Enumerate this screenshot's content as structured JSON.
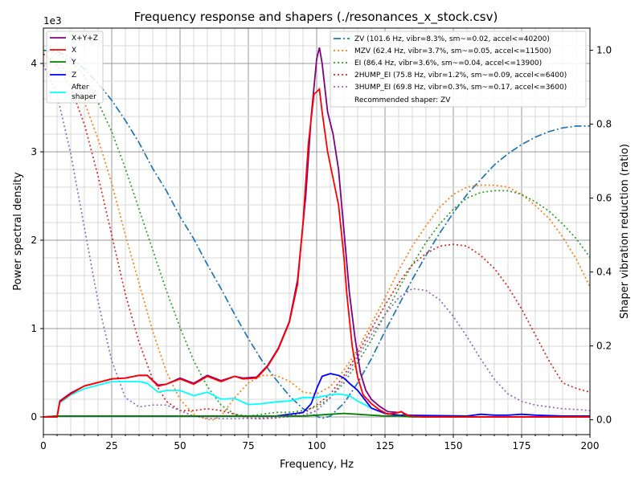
{
  "chart_data": {
    "type": "line",
    "title": "Frequency response and shapers (./resonances_x_stock.csv)",
    "xlabel": "Frequency, Hz",
    "ylabel": "Power spectral density",
    "y2label": "Shaper vibration reduction (ratio)",
    "offset_text": "1e3",
    "xlim": [
      0,
      200
    ],
    "ylim": [
      -0.2,
      4.4
    ],
    "y2lim": [
      -0.04,
      1.06
    ],
    "xticks": [
      "0",
      "25",
      "50",
      "75",
      "100",
      "125",
      "150",
      "175",
      "200"
    ],
    "yticks": [
      "0",
      "1",
      "2",
      "3",
      "4"
    ],
    "y2ticks": [
      "0.0",
      "0.2",
      "0.4",
      "0.6",
      "0.8",
      "1.0"
    ],
    "grid": true,
    "legend_left": {
      "placement": "top-left",
      "entries": [
        "X+Y+Z",
        "X",
        "Y",
        "Z",
        "After\nshaper"
      ]
    },
    "legend_right": {
      "placement": "top-right",
      "entries": [
        "ZV (101.6 Hz, vibr=8.3%, sm~=0.02, accel<=40200)",
        "MZV (62.4 Hz, vibr=3.7%, sm~=0.05, accel<=11500)",
        "EI (86.4 Hz, vibr=3.6%, sm~=0.04, accel<=13900)",
        "2HUMP_EI (75.8 Hz, vibr=1.2%, sm~=0.09, accel<=6400)",
        "3HUMP_EI (69.8 Hz, vibr=0.3%, sm~=0.17, accel<=3600)"
      ],
      "recommended": "Recommended shaper: ZV"
    },
    "psd_series": [
      {
        "name": "X+Y+Z",
        "color": "#800080",
        "x": [
          0,
          5,
          6,
          10,
          15,
          20,
          25,
          30,
          35,
          38,
          42,
          45,
          50,
          55,
          60,
          65,
          70,
          73,
          78,
          82,
          86,
          90,
          93,
          96,
          98,
          100,
          101,
          102,
          104,
          106,
          108,
          110,
          112,
          114,
          116,
          118,
          120,
          123,
          126,
          130,
          131,
          132,
          134,
          140,
          160,
          200
        ],
        "y": [
          0,
          0,
          0.18,
          0.27,
          0.35,
          0.39,
          0.43,
          0.44,
          0.47,
          0.47,
          0.36,
          0.37,
          0.44,
          0.38,
          0.47,
          0.41,
          0.46,
          0.44,
          0.45,
          0.58,
          0.78,
          1.08,
          1.55,
          2.5,
          3.4,
          4.05,
          4.18,
          4.0,
          3.45,
          3.2,
          2.8,
          2.1,
          1.4,
          0.9,
          0.5,
          0.3,
          0.2,
          0.12,
          0.06,
          0.05,
          0.06,
          0.04,
          0.01,
          0,
          0,
          0
        ]
      },
      {
        "name": "X",
        "color": "#ff0000",
        "x": [
          0,
          5,
          6,
          10,
          15,
          20,
          25,
          30,
          35,
          38,
          42,
          45,
          50,
          55,
          60,
          65,
          70,
          73,
          78,
          82,
          86,
          90,
          93,
          95,
          97,
          99,
          101,
          102,
          104,
          106,
          108,
          110,
          111,
          113,
          115,
          117,
          120,
          123,
          126,
          130,
          131,
          132,
          134,
          140,
          200
        ],
        "y": [
          0,
          0,
          0.17,
          0.26,
          0.35,
          0.39,
          0.43,
          0.44,
          0.47,
          0.47,
          0.35,
          0.37,
          0.43,
          0.37,
          0.46,
          0.4,
          0.46,
          0.43,
          0.44,
          0.57,
          0.77,
          1.07,
          1.5,
          2.2,
          3.1,
          3.65,
          3.71,
          3.45,
          3.0,
          2.7,
          2.4,
          1.8,
          1.4,
          0.8,
          0.45,
          0.25,
          0.15,
          0.08,
          0.03,
          0.05,
          0.06,
          0.03,
          0.01,
          0,
          0
        ]
      },
      {
        "name": "Y",
        "color": "#008000",
        "x": [
          0,
          5,
          90,
          95,
          100,
          105,
          110,
          115,
          120,
          125,
          130,
          135,
          200
        ],
        "y": [
          0,
          0.01,
          0.01,
          0.01,
          0.02,
          0.03,
          0.04,
          0.03,
          0.02,
          0.01,
          0.01,
          0,
          0
        ]
      },
      {
        "name": "Z",
        "color": "#0000ff",
        "x": [
          0,
          5,
          85,
          95,
          98,
          100,
          102,
          105,
          108,
          110,
          112,
          115,
          118,
          120,
          125,
          130,
          155,
          160,
          165,
          170,
          175,
          180,
          190,
          200
        ],
        "y": [
          0,
          0.01,
          0.01,
          0.05,
          0.15,
          0.32,
          0.46,
          0.49,
          0.47,
          0.44,
          0.38,
          0.3,
          0.18,
          0.1,
          0.04,
          0.02,
          0.01,
          0.03,
          0.02,
          0.02,
          0.03,
          0.02,
          0.01,
          0.01
        ]
      },
      {
        "name": "After\nshaper",
        "color": "#00ffff",
        "x": [
          0,
          5,
          6,
          10,
          15,
          20,
          25,
          30,
          35,
          38,
          42,
          45,
          50,
          55,
          60,
          65,
          70,
          75,
          80,
          85,
          90,
          95,
          100,
          105,
          108,
          112,
          115,
          120,
          125,
          130,
          133,
          140,
          200
        ],
        "y": [
          0,
          0,
          0.16,
          0.25,
          0.32,
          0.36,
          0.4,
          0.4,
          0.4,
          0.38,
          0.28,
          0.3,
          0.3,
          0.24,
          0.28,
          0.2,
          0.21,
          0.14,
          0.15,
          0.17,
          0.18,
          0.22,
          0.22,
          0.25,
          0.26,
          0.24,
          0.18,
          0.1,
          0.04,
          0.02,
          0.01,
          0,
          0
        ]
      }
    ],
    "shaper_series": [
      {
        "name": "ZV",
        "color": "#1f77b4",
        "dash": "dashdot",
        "x": [
          0,
          5,
          10,
          15,
          20,
          25,
          30,
          35,
          40,
          45,
          50,
          55,
          60,
          65,
          70,
          75,
          80,
          85,
          90,
          95,
          100,
          102,
          105,
          110,
          115,
          120,
          125,
          130,
          135,
          140,
          145,
          150,
          155,
          160,
          165,
          170,
          175,
          180,
          185,
          190,
          195,
          200
        ],
        "y": [
          1.0,
          0.997,
          0.98,
          0.95,
          0.91,
          0.865,
          0.81,
          0.75,
          0.68,
          0.62,
          0.55,
          0.49,
          0.42,
          0.355,
          0.285,
          0.22,
          0.16,
          0.11,
          0.065,
          0.03,
          0.01,
          0.004,
          0.01,
          0.045,
          0.1,
          0.165,
          0.24,
          0.31,
          0.38,
          0.445,
          0.505,
          0.56,
          0.61,
          0.65,
          0.69,
          0.72,
          0.745,
          0.765,
          0.78,
          0.79,
          0.795,
          0.795
        ]
      },
      {
        "name": "MZV",
        "color": "#ff7f0e",
        "dash": "dotted",
        "x": [
          0,
          5,
          10,
          15,
          20,
          25,
          30,
          35,
          40,
          45,
          50,
          55,
          60,
          62,
          65,
          70,
          75,
          80,
          85,
          90,
          95,
          100,
          105,
          110,
          115,
          120,
          125,
          130,
          135,
          140,
          145,
          150,
          155,
          160,
          165,
          170,
          175,
          180,
          185,
          190,
          195,
          200
        ],
        "y": [
          0.99,
          0.97,
          0.93,
          0.86,
          0.76,
          0.64,
          0.5,
          0.37,
          0.24,
          0.13,
          0.055,
          0.015,
          0.001,
          0.0,
          0.01,
          0.06,
          0.1,
          0.12,
          0.12,
          0.105,
          0.075,
          0.07,
          0.09,
          0.135,
          0.19,
          0.26,
          0.33,
          0.405,
          0.47,
          0.525,
          0.575,
          0.61,
          0.63,
          0.635,
          0.635,
          0.63,
          0.61,
          0.58,
          0.545,
          0.495,
          0.435,
          0.36
        ]
      },
      {
        "name": "EI",
        "color": "#2ca02c",
        "dash": "dotted",
        "x": [
          0,
          5,
          10,
          15,
          20,
          25,
          30,
          35,
          40,
          45,
          50,
          55,
          60,
          65,
          70,
          75,
          80,
          85,
          87,
          90,
          95,
          100,
          105,
          110,
          115,
          120,
          125,
          130,
          135,
          140,
          145,
          150,
          155,
          160,
          165,
          170,
          175,
          180,
          185,
          190,
          195,
          200
        ],
        "y": [
          1.0,
          0.99,
          0.97,
          0.93,
          0.86,
          0.78,
          0.68,
          0.57,
          0.46,
          0.35,
          0.25,
          0.16,
          0.09,
          0.04,
          0.015,
          0.01,
          0.015,
          0.02,
          0.02,
          0.02,
          0.025,
          0.035,
          0.06,
          0.1,
          0.155,
          0.215,
          0.285,
          0.355,
          0.42,
          0.48,
          0.53,
          0.57,
          0.6,
          0.615,
          0.62,
          0.62,
          0.61,
          0.59,
          0.565,
          0.53,
          0.49,
          0.44
        ]
      },
      {
        "name": "2HUMP_EI",
        "color": "#d62728",
        "dash": "dotted",
        "x": [
          0,
          5,
          10,
          15,
          20,
          25,
          30,
          35,
          40,
          45,
          50,
          55,
          60,
          65,
          70,
          75,
          78,
          80,
          85,
          90,
          95,
          100,
          105,
          110,
          115,
          120,
          125,
          130,
          135,
          140,
          145,
          150,
          155,
          160,
          165,
          170,
          175,
          180,
          185,
          190,
          195,
          200
        ],
        "y": [
          0.99,
          0.96,
          0.9,
          0.8,
          0.66,
          0.5,
          0.34,
          0.21,
          0.11,
          0.05,
          0.025,
          0.025,
          0.03,
          0.025,
          0.015,
          0.005,
          0.003,
          0.003,
          0.005,
          0.01,
          0.02,
          0.04,
          0.07,
          0.12,
          0.18,
          0.245,
          0.31,
          0.37,
          0.42,
          0.45,
          0.47,
          0.475,
          0.47,
          0.445,
          0.41,
          0.36,
          0.3,
          0.23,
          0.16,
          0.1,
          0.085,
          0.075
        ]
      },
      {
        "name": "3HUMP_EI",
        "color": "#9467bd",
        "dash": "dotted",
        "x": [
          0,
          5,
          10,
          15,
          20,
          25,
          30,
          35,
          40,
          45,
          50,
          55,
          60,
          65,
          70,
          75,
          80,
          85,
          90,
          95,
          100,
          105,
          110,
          115,
          120,
          125,
          130,
          135,
          140,
          145,
          150,
          155,
          160,
          165,
          170,
          175,
          180,
          185,
          190,
          195,
          200
        ],
        "y": [
          0.96,
          0.88,
          0.72,
          0.52,
          0.32,
          0.16,
          0.06,
          0.035,
          0.04,
          0.04,
          0.025,
          0.01,
          0.004,
          0.003,
          0.003,
          0.004,
          0.005,
          0.006,
          0.008,
          0.012,
          0.025,
          0.06,
          0.11,
          0.17,
          0.23,
          0.285,
          0.33,
          0.355,
          0.35,
          0.325,
          0.28,
          0.225,
          0.165,
          0.11,
          0.07,
          0.05,
          0.04,
          0.035,
          0.03,
          0.028,
          0.025
        ]
      }
    ]
  }
}
